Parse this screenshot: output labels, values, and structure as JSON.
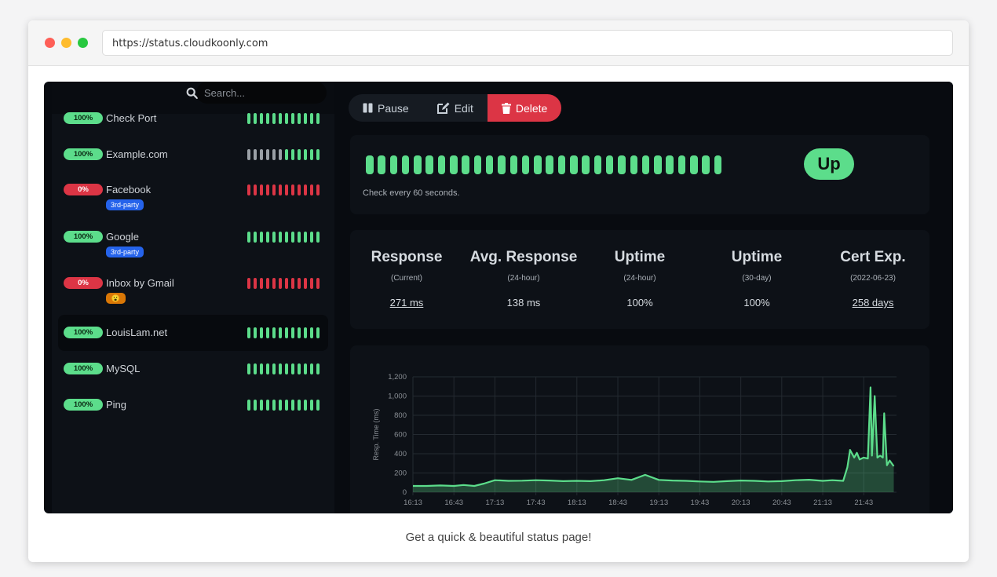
{
  "browser": {
    "url": "https://status.cloudkoonly.com"
  },
  "sidebar": {
    "search_placeholder": "Search...",
    "monitors": [
      {
        "name": "Check Port",
        "uptime": "100%",
        "status": "up",
        "tag": "",
        "beats": "gggggggggggg"
      },
      {
        "name": "Example.com",
        "uptime": "100%",
        "status": "up",
        "tag": "",
        "beats": "ggggggggggggg"
      },
      {
        "name": "Facebook",
        "uptime": "0%",
        "status": "down",
        "tag": "3rd-party",
        "beats": "rrrrrrrrrrrr"
      },
      {
        "name": "Google",
        "uptime": "100%",
        "status": "up",
        "tag": "3rd-party",
        "beats": "gggggggggggg"
      },
      {
        "name": "Inbox by Gmail",
        "uptime": "0%",
        "status": "down",
        "tag": "😮",
        "beats": "rrrrrrrrrrrr"
      },
      {
        "name": "LouisLam.net",
        "uptime": "100%",
        "status": "up",
        "tag": "",
        "beats": "gggggggggggg"
      },
      {
        "name": "MySQL",
        "uptime": "100%",
        "status": "up",
        "tag": "",
        "beats": "gggggggggggg"
      },
      {
        "name": "Ping",
        "uptime": "100%",
        "status": "up",
        "tag": "",
        "beats": "gggggggggggg"
      }
    ]
  },
  "toolbar": {
    "pause_label": "Pause",
    "edit_label": "Edit",
    "delete_label": "Delete"
  },
  "heartbeat": {
    "check_text": "Check every 60 seconds.",
    "status": "Up",
    "beat_count": 30
  },
  "stats": [
    {
      "title": "Response",
      "sub": "(Current)",
      "value": "271 ms",
      "link": true
    },
    {
      "title": "Avg. Response",
      "sub": "(24-hour)",
      "value": "138 ms",
      "link": false
    },
    {
      "title": "Uptime",
      "sub": "(24-hour)",
      "value": "100%",
      "link": false
    },
    {
      "title": "Uptime",
      "sub": "(30-day)",
      "value": "100%",
      "link": false
    },
    {
      "title": "Cert Exp.",
      "sub": "(2022-06-23)",
      "value": "258 days",
      "link": true
    }
  ],
  "colors": {
    "up": "#5cdd8b",
    "down": "#dc3545",
    "pending": "#9aa0a6",
    "tag_blue": "#2563eb",
    "tag_orange": "#d97706"
  },
  "chart_data": {
    "type": "area",
    "ylabel": "Resp. Time (ms)",
    "xlabel": "",
    "ylim": [
      0,
      1200
    ],
    "yticks": [
      0,
      200,
      400,
      600,
      800,
      "1,000",
      "1,200"
    ],
    "x_tick_labels": [
      "16:13",
      "16:43",
      "17:13",
      "17:43",
      "18:13",
      "18:43",
      "19:13",
      "19:43",
      "20:13",
      "20:43",
      "21:13",
      "21:43"
    ],
    "series": [
      {
        "color": "#5cdd8b",
        "points": [
          [
            "16:13",
            65
          ],
          [
            "16:23",
            65
          ],
          [
            "16:33",
            70
          ],
          [
            "16:43",
            65
          ],
          [
            "16:50",
            75
          ],
          [
            "16:58",
            65
          ],
          [
            "17:05",
            90
          ],
          [
            "17:13",
            125
          ],
          [
            "17:23",
            118
          ],
          [
            "17:33",
            120
          ],
          [
            "17:43",
            125
          ],
          [
            "17:53",
            122
          ],
          [
            "18:03",
            115
          ],
          [
            "18:13",
            118
          ],
          [
            "18:23",
            115
          ],
          [
            "18:33",
            125
          ],
          [
            "18:43",
            145
          ],
          [
            "18:53",
            128
          ],
          [
            "19:03",
            180
          ],
          [
            "19:13",
            128
          ],
          [
            "19:23",
            122
          ],
          [
            "19:33",
            118
          ],
          [
            "19:43",
            112
          ],
          [
            "19:53",
            108
          ],
          [
            "20:03",
            115
          ],
          [
            "20:13",
            122
          ],
          [
            "20:23",
            118
          ],
          [
            "20:33",
            112
          ],
          [
            "20:43",
            115
          ],
          [
            "20:53",
            125
          ],
          [
            "21:03",
            130
          ],
          [
            "21:13",
            118
          ],
          [
            "21:20",
            125
          ],
          [
            "21:28",
            118
          ],
          [
            "21:31",
            260
          ],
          [
            "21:33",
            440
          ],
          [
            "21:36",
            360
          ],
          [
            "21:38",
            410
          ],
          [
            "21:40",
            340
          ],
          [
            "21:43",
            360
          ],
          [
            "21:46",
            350
          ],
          [
            "21:48",
            1090
          ],
          [
            "21:49",
            380
          ],
          [
            "21:51",
            1000
          ],
          [
            "21:53",
            360
          ],
          [
            "21:55",
            380
          ],
          [
            "21:57",
            360
          ],
          [
            "21:58",
            820
          ],
          [
            "22:00",
            280
          ],
          [
            "22:02",
            330
          ],
          [
            "22:05",
            270
          ]
        ]
      }
    ]
  },
  "caption": "Get a quick & beautiful status page!"
}
